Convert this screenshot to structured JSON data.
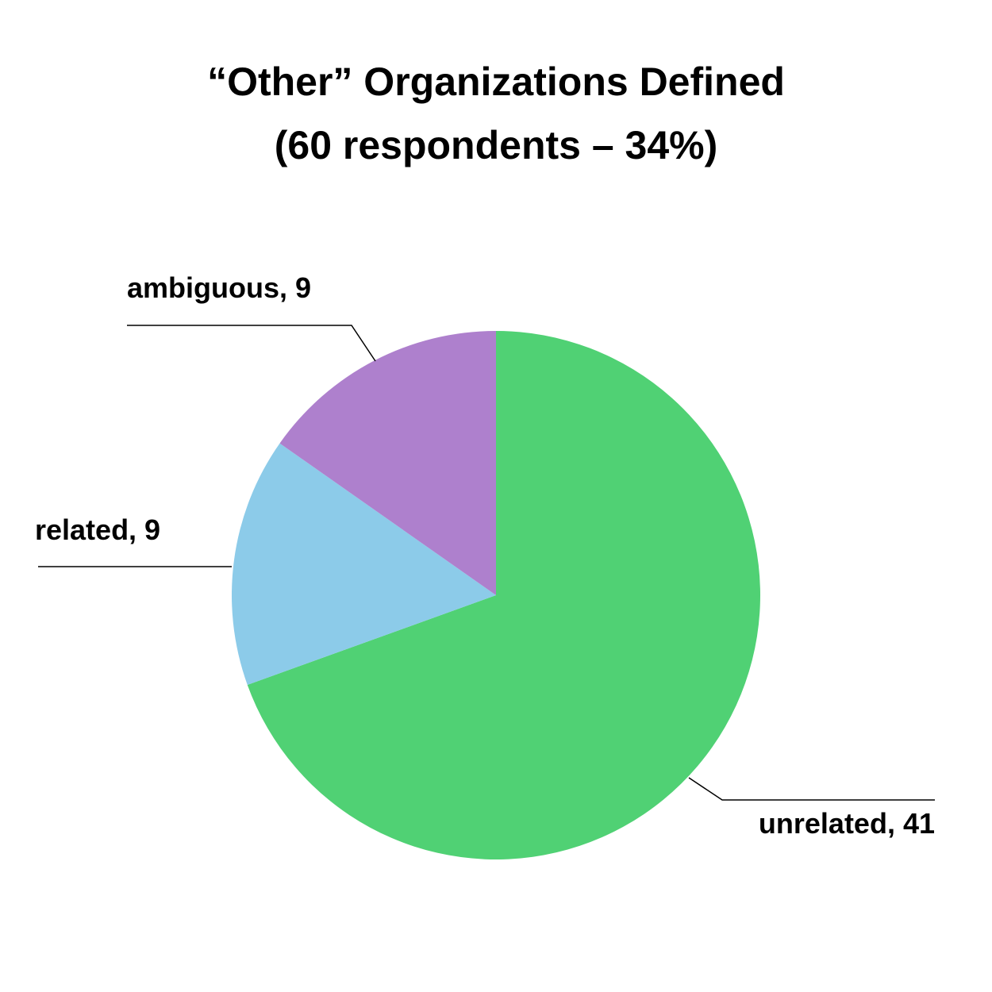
{
  "chart_data": {
    "type": "pie",
    "title": "“Other” Organizations Defined",
    "subtitle": "(60 respondents – 34%)",
    "values": [
      41,
      9,
      9
    ],
    "value_labels": [
      "unrelated, 41",
      "related, 9",
      "ambiguous, 9"
    ],
    "colors": [
      "#50d174",
      "#8ccbe9",
      "#ae80cd"
    ]
  }
}
